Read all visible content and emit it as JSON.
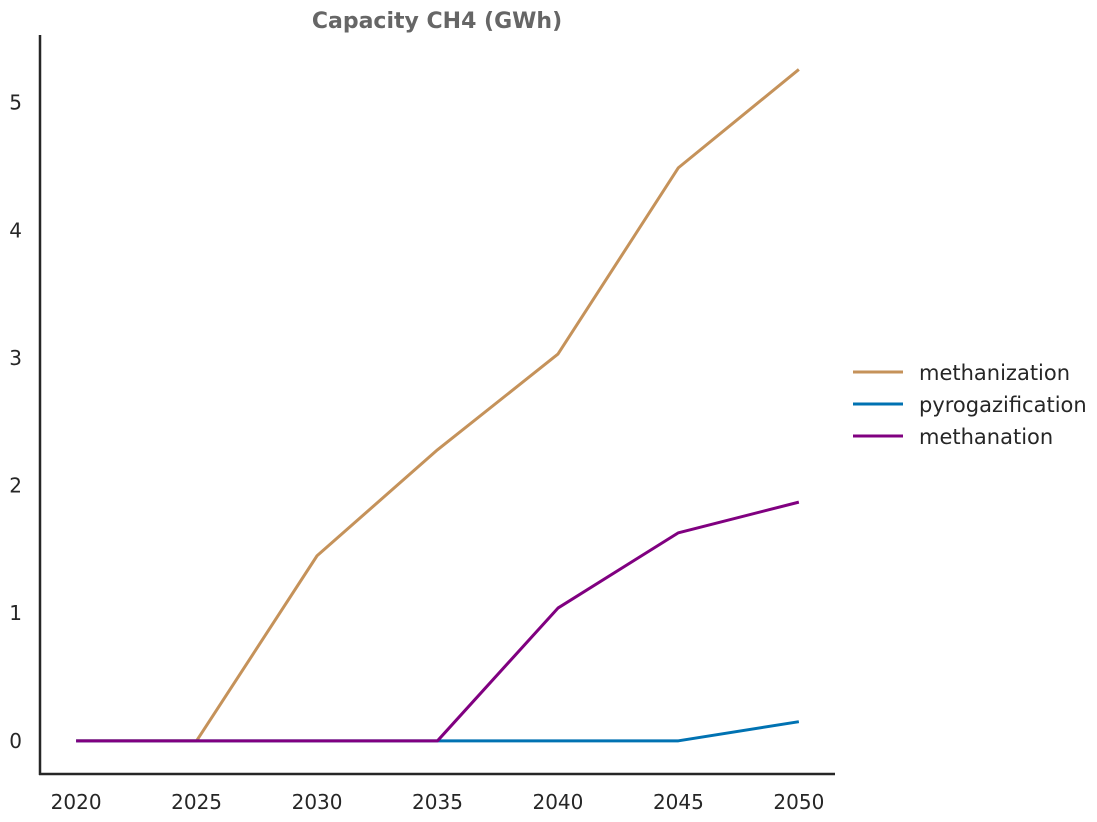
{
  "chart_data": {
    "type": "line",
    "title": "Capacity CH4 (GWh)",
    "xlabel": "",
    "ylabel": "",
    "x": [
      2020,
      2025,
      2030,
      2035,
      2040,
      2045,
      2050
    ],
    "x_tick_labels": [
      "2020",
      "2025",
      "2030",
      "2035",
      "2040",
      "2045",
      "2050"
    ],
    "y_ticks": [
      0,
      1,
      2,
      3,
      4,
      5
    ],
    "y_tick_labels": [
      "0",
      "1",
      "2",
      "3",
      "4",
      "5"
    ],
    "xlim": [
      2018.5,
      2051.5
    ],
    "ylim": [
      -0.26,
      5.53
    ],
    "grid": false,
    "legend_position": "right",
    "series": [
      {
        "name": "methanization",
        "color": "#C5925A",
        "values": [
          0,
          0,
          1.45,
          2.28,
          3.03,
          4.49,
          5.26
        ]
      },
      {
        "name": "pyrogazification",
        "color": "#0072B2",
        "values": [
          0,
          0,
          0,
          0,
          0,
          0,
          0.15
        ]
      },
      {
        "name": "methanation",
        "color": "#800080",
        "values": [
          0,
          0,
          0,
          0,
          1.04,
          1.63,
          1.87
        ]
      }
    ]
  }
}
